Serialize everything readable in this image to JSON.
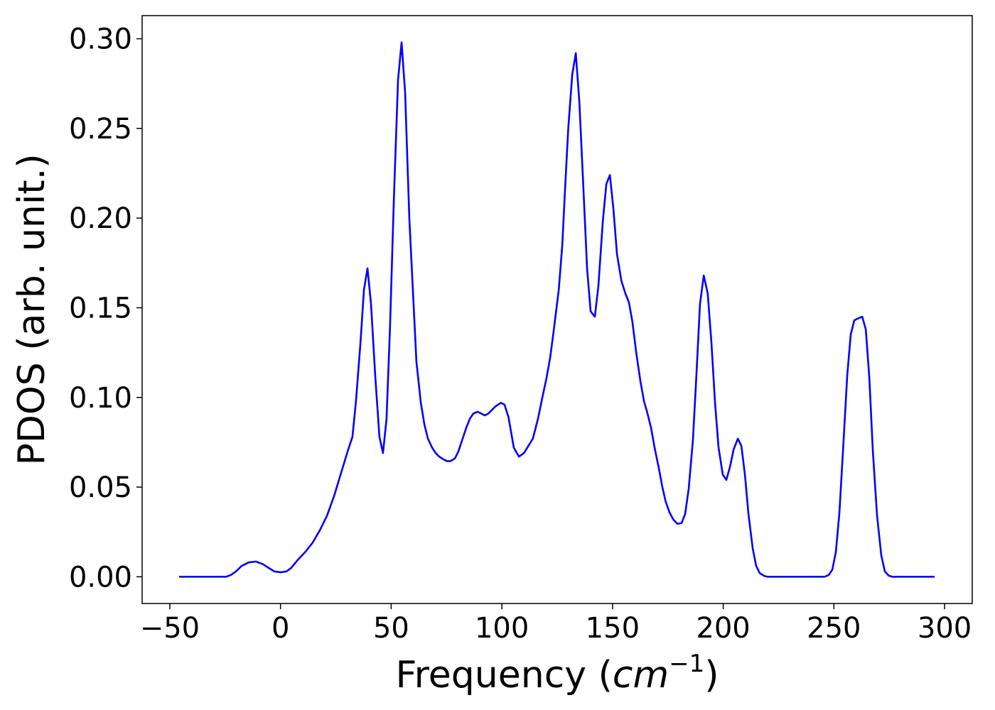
{
  "chart_data": {
    "type": "line",
    "x_label": [
      "Frequency (",
      "cm",
      "−1",
      ")"
    ],
    "y_label": "PDOS (arb. unit.)",
    "color": "#0000ff",
    "x": [
      -45.8,
      -24.6,
      -22.4,
      -20.1,
      -17.6,
      -14.4,
      -11.1,
      -7.9,
      -5.4,
      -2.8,
      0.1,
      2.7,
      4.9,
      7.5,
      11.3,
      14.5,
      17.8,
      21,
      24.2,
      27.4,
      30.6,
      32.5,
      34.1,
      36.1,
      37.7,
      39.3,
      40.9,
      42.8,
      44.7,
      46.3,
      47.9,
      49.5,
      51.2,
      53.1,
      54.7,
      56.3,
      58.2,
      59.8,
      61.4,
      63.4,
      65,
      66.6,
      68.5,
      70.1,
      71.7,
      73.6,
      75.2,
      76.8,
      78.8,
      80.4,
      82,
      83.9,
      85.5,
      87.1,
      89,
      90.7,
      92.3,
      93.9,
      95.5,
      97.1,
      99.6,
      101.2,
      103,
      105.4,
      107.7,
      110,
      112,
      114,
      116.3,
      118.3,
      120.2,
      121.8,
      123.4,
      125.7,
      127.3,
      128.5,
      130,
      131.8,
      133.4,
      135,
      136.9,
      138.5,
      140.1,
      142,
      143.6,
      145.6,
      147.2,
      148.8,
      150.4,
      152,
      154,
      155.8,
      157.4,
      159,
      160.7,
      162.6,
      164.2,
      165.8,
      167.4,
      169,
      171,
      172.5,
      174,
      175.7,
      177.4,
      179.3,
      181.2,
      182.8,
      184.4,
      186.3,
      188,
      189.5,
      191.2,
      193,
      194.7,
      196.3,
      197.9,
      199.8,
      201.4,
      203,
      204.7,
      206.6,
      208.2,
      209.8,
      211.4,
      213.3,
      214.9,
      216.5,
      218.5,
      220,
      245.8,
      247.7,
      249.3,
      250.9,
      252.5,
      254.1,
      256,
      257.6,
      259.2,
      260.8,
      262.8,
      264.4,
      266,
      267.6,
      269.5,
      271.4,
      273,
      274.7,
      276.3,
      295.5
    ],
    "values": [
      0,
      0,
      0.001,
      0.003,
      0.006,
      0.008,
      0.0085,
      0.007,
      0.005,
      0.003,
      0.0025,
      0.003,
      0.005,
      0.009,
      0.014,
      0.019,
      0.026,
      0.034,
      0.045,
      0.058,
      0.071,
      0.078,
      0.098,
      0.13,
      0.16,
      0.172,
      0.152,
      0.112,
      0.078,
      0.069,
      0.088,
      0.14,
      0.21,
      0.277,
      0.298,
      0.27,
      0.2,
      0.16,
      0.12,
      0.097,
      0.085,
      0.077,
      0.072,
      0.069,
      0.067,
      0.0655,
      0.0645,
      0.0645,
      0.066,
      0.07,
      0.076,
      0.083,
      0.088,
      0.091,
      0.092,
      0.091,
      0.09,
      0.091,
      0.093,
      0.095,
      0.097,
      0.096,
      0.089,
      0.072,
      0.067,
      0.069,
      0.073,
      0.077,
      0.088,
      0.1,
      0.111,
      0.122,
      0.137,
      0.16,
      0.185,
      0.215,
      0.25,
      0.28,
      0.292,
      0.265,
      0.215,
      0.172,
      0.148,
      0.145,
      0.162,
      0.198,
      0.219,
      0.224,
      0.205,
      0.18,
      0.165,
      0.158,
      0.153,
      0.142,
      0.125,
      0.109,
      0.098,
      0.091,
      0.083,
      0.072,
      0.06,
      0.05,
      0.042,
      0.036,
      0.032,
      0.0295,
      0.03,
      0.035,
      0.049,
      0.076,
      0.115,
      0.152,
      0.168,
      0.158,
      0.13,
      0.097,
      0.072,
      0.057,
      0.054,
      0.061,
      0.071,
      0.077,
      0.073,
      0.057,
      0.035,
      0.016,
      0.006,
      0.002,
      0.0005,
      0,
      0,
      0.001,
      0.004,
      0.014,
      0.036,
      0.07,
      0.112,
      0.135,
      0.143,
      0.144,
      0.145,
      0.138,
      0.111,
      0.07,
      0.034,
      0.012,
      0.003,
      0.0007,
      0,
      0
    ],
    "xlim": [
      -62.5,
      312.5
    ],
    "ylim": [
      -0.0149,
      0.3129
    ],
    "xticks": [
      {
        "value": -50,
        "label": "−50"
      },
      0,
      50,
      100,
      150,
      200,
      250,
      300
    ],
    "yticks": [
      {
        "value": 0,
        "label": "0.00"
      },
      {
        "value": 0.05,
        "label": "0.05"
      },
      {
        "value": 0.1,
        "label": "0.10"
      },
      {
        "value": 0.15,
        "label": "0.15"
      },
      {
        "value": 0.2,
        "label": "0.20"
      },
      {
        "value": 0.25,
        "label": "0.25"
      },
      {
        "value": 0.3,
        "label": "0.30"
      }
    ],
    "grid": false
  }
}
